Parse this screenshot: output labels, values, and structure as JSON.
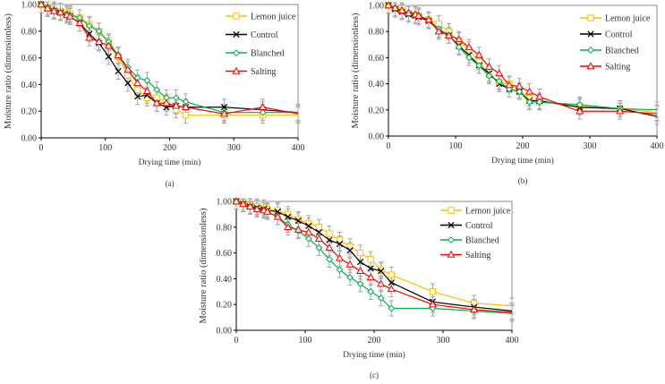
{
  "chart_data": [
    {
      "type": "line",
      "caption": "(a)",
      "xlabel": "Drying time (min)",
      "ylabel": "Moisture ratio (dimensionless)",
      "xlim": [
        0,
        400
      ],
      "ylim": [
        0,
        1
      ],
      "xticks": [
        "0",
        "100",
        "200",
        "300",
        "400"
      ],
      "yticks": [
        "0.00",
        "0.20",
        "0.40",
        "0.60",
        "0.80",
        "1.00"
      ],
      "legend_position": "top-right",
      "error": 0.06,
      "x": [
        0,
        10,
        20,
        30,
        40,
        45,
        60,
        75,
        90,
        105,
        120,
        135,
        150,
        165,
        180,
        195,
        210,
        225,
        285,
        345
      ],
      "x_end": 400,
      "series": [
        {
          "name": "Lemon juice",
          "color": "#FFC000",
          "marker": "square",
          "values": [
            1.0,
            0.98,
            0.96,
            0.95,
            0.94,
            0.93,
            0.9,
            0.85,
            0.8,
            0.71,
            0.61,
            0.47,
            0.36,
            0.3,
            0.3,
            0.27,
            0.21,
            0.17,
            0.17,
            0.17
          ],
          "end": 0.17
        },
        {
          "name": "Control",
          "color": "#000000",
          "marker": "x",
          "values": [
            1.0,
            0.97,
            0.95,
            0.94,
            0.92,
            0.91,
            0.86,
            0.78,
            0.71,
            0.61,
            0.5,
            0.41,
            0.31,
            0.32,
            0.26,
            0.23,
            0.24,
            0.23,
            0.23,
            0.21
          ],
          "end": 0.19
        },
        {
          "name": "Blanched",
          "color": "#00B050",
          "marker": "diamond",
          "values": [
            1.0,
            0.98,
            0.96,
            0.94,
            0.93,
            0.92,
            0.9,
            0.84,
            0.8,
            0.72,
            0.62,
            0.53,
            0.45,
            0.43,
            0.36,
            0.3,
            0.3,
            0.27,
            0.19,
            0.19
          ],
          "end": 0.19
        },
        {
          "name": "Salting",
          "color": "#FF0000",
          "marker": "triangle",
          "values": [
            1.0,
            0.97,
            0.95,
            0.94,
            0.92,
            0.91,
            0.86,
            0.75,
            0.72,
            0.69,
            0.62,
            0.51,
            0.41,
            0.35,
            0.26,
            0.26,
            0.24,
            0.23,
            0.18,
            0.23
          ],
          "end": 0.18
        }
      ]
    },
    {
      "type": "line",
      "caption": "(b)",
      "xlabel": "Drying time (min)",
      "ylabel": "Moisture ratio (dimensionless)",
      "xlim": [
        0,
        400
      ],
      "ylim": [
        0,
        1
      ],
      "xticks": [
        "0",
        "100",
        "200",
        "300",
        "400"
      ],
      "yticks": [
        "0.00",
        "0.20",
        "0.40",
        "0.60",
        "0.80",
        "1.00"
      ],
      "legend_position": "top-right",
      "error": 0.06,
      "x": [
        0,
        10,
        20,
        30,
        40,
        45,
        60,
        75,
        90,
        105,
        120,
        135,
        150,
        165,
        180,
        195,
        210,
        225,
        285,
        345
      ],
      "x_end": 400,
      "series": [
        {
          "name": "Lemon juice",
          "color": "#FFC000",
          "marker": "square",
          "values": [
            1.0,
            0.98,
            0.96,
            0.94,
            0.93,
            0.92,
            0.89,
            0.86,
            0.8,
            0.73,
            0.66,
            0.57,
            0.47,
            0.41,
            0.4,
            0.35,
            0.29,
            0.26,
            0.23,
            0.21
          ],
          "end": 0.18
        },
        {
          "name": "Control",
          "color": "#000000",
          "marker": "x",
          "values": [
            1.0,
            0.97,
            0.95,
            0.93,
            0.92,
            0.91,
            0.88,
            0.81,
            0.77,
            0.69,
            0.62,
            0.54,
            0.48,
            0.4,
            0.36,
            0.34,
            0.27,
            0.27,
            0.22,
            0.21
          ],
          "end": 0.15
        },
        {
          "name": "Blanched",
          "color": "#00B050",
          "marker": "diamond",
          "values": [
            1.0,
            0.98,
            0.96,
            0.94,
            0.93,
            0.92,
            0.89,
            0.82,
            0.77,
            0.68,
            0.6,
            0.54,
            0.46,
            0.42,
            0.36,
            0.34,
            0.26,
            0.26,
            0.24,
            0.21
          ],
          "end": 0.2
        },
        {
          "name": "Salting",
          "color": "#FF0000",
          "marker": "triangle",
          "values": [
            1.0,
            0.98,
            0.96,
            0.94,
            0.93,
            0.92,
            0.89,
            0.8,
            0.77,
            0.74,
            0.68,
            0.62,
            0.53,
            0.48,
            0.39,
            0.38,
            0.34,
            0.3,
            0.19,
            0.19
          ],
          "end": 0.17
        }
      ]
    },
    {
      "type": "line",
      "caption": "(c)",
      "xlabel": "Drying time (min)",
      "ylabel": "Moisture ratio (dimensionless)",
      "xlim": [
        0,
        400
      ],
      "ylim": [
        0,
        1
      ],
      "xticks": [
        "0",
        "100",
        "200",
        "300",
        "400"
      ],
      "yticks": [
        "0.00",
        "0.20",
        "0.40",
        "0.60",
        "0.80",
        "1.00"
      ],
      "legend_position": "top-right",
      "error": 0.06,
      "x": [
        0,
        10,
        20,
        30,
        40,
        45,
        60,
        75,
        90,
        105,
        120,
        135,
        150,
        165,
        180,
        195,
        210,
        225,
        285,
        345
      ],
      "x_end": 400,
      "series": [
        {
          "name": "Lemon juice",
          "color": "#FFC000",
          "marker": "square",
          "values": [
            1.0,
            0.99,
            0.97,
            0.96,
            0.95,
            0.94,
            0.93,
            0.9,
            0.86,
            0.83,
            0.8,
            0.75,
            0.7,
            0.65,
            0.6,
            0.55,
            0.47,
            0.43,
            0.3,
            0.21
          ],
          "end": 0.19
        },
        {
          "name": "Control",
          "color": "#000000",
          "marker": "x",
          "values": [
            1.0,
            0.98,
            0.96,
            0.95,
            0.94,
            0.93,
            0.92,
            0.88,
            0.85,
            0.81,
            0.76,
            0.7,
            0.67,
            0.62,
            0.53,
            0.48,
            0.46,
            0.37,
            0.22,
            0.18
          ],
          "end": 0.15
        },
        {
          "name": "Blanched",
          "color": "#00B050",
          "marker": "diamond",
          "values": [
            1.0,
            0.98,
            0.96,
            0.94,
            0.93,
            0.92,
            0.88,
            0.82,
            0.77,
            0.71,
            0.64,
            0.55,
            0.47,
            0.41,
            0.36,
            0.3,
            0.25,
            0.17,
            0.17,
            0.15
          ],
          "end": 0.13
        },
        {
          "name": "Salting",
          "color": "#FF0000",
          "marker": "triangle",
          "values": [
            1.0,
            0.98,
            0.96,
            0.94,
            0.93,
            0.92,
            0.88,
            0.8,
            0.78,
            0.76,
            0.71,
            0.64,
            0.56,
            0.51,
            0.46,
            0.41,
            0.36,
            0.32,
            0.2,
            0.16
          ],
          "end": 0.14
        }
      ]
    }
  ]
}
